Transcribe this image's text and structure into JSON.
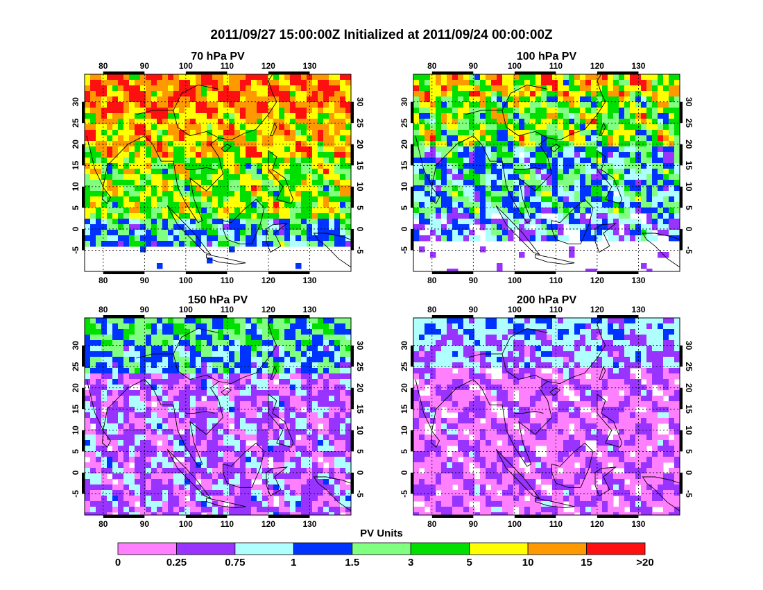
{
  "title": "2011/09/27 15:00:00Z Initialized at 2011/09/24 00:00:00Z",
  "lon_ticks": [
    "80",
    "90",
    "100",
    "110",
    "120",
    "130"
  ],
  "lat_ticks": [
    "30",
    "25",
    "20",
    "15",
    "10",
    "5",
    "0",
    "-5"
  ],
  "panels": [
    {
      "title": "70 hPa PV",
      "theme": "high"
    },
    {
      "title": "100 hPa PV",
      "theme": "midhigh"
    },
    {
      "title": "150 hPa PV",
      "theme": "mid"
    },
    {
      "title": "200 hPa PV",
      "theme": "low"
    }
  ],
  "legend": {
    "title": "PV Units",
    "labels": [
      "0",
      "0.25",
      "0.75",
      "1",
      "1.5",
      "3",
      "5",
      "10",
      "15",
      ">20"
    ],
    "colors": [
      "#ff80ff",
      "#9933ff",
      "#b0ffff",
      "#0033ff",
      "#80ff80",
      "#00e000",
      "#ffff00",
      "#ff9900",
      "#ff1010"
    ]
  }
}
